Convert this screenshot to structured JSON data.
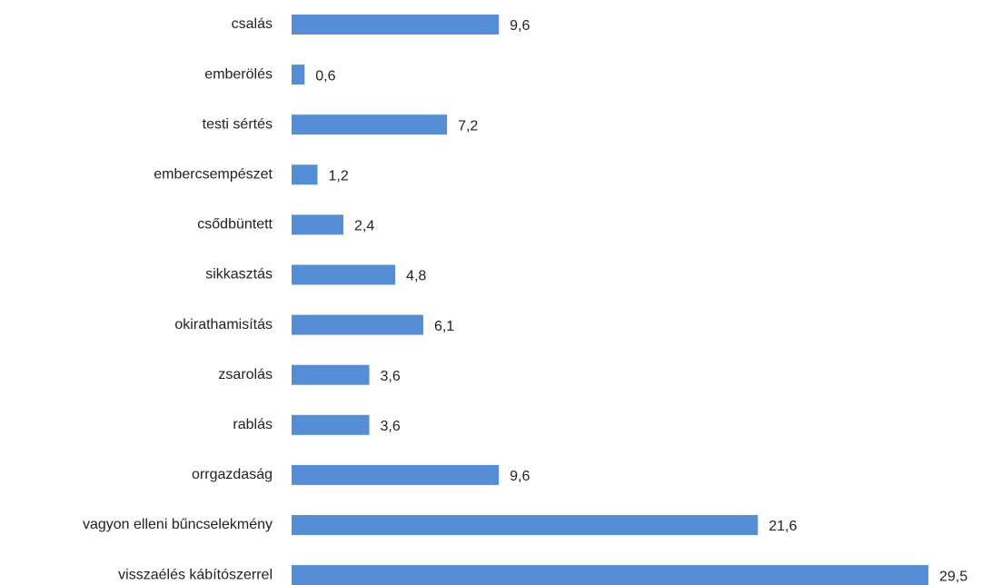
{
  "chart_data": {
    "type": "bar",
    "orientation": "horizontal",
    "categories": [
      "csalás",
      "emberölés",
      "testi sértés",
      "embercsempészet",
      "csődbüntett",
      "sikkasztás",
      "okirathamisítás",
      "zsarolás",
      "rablás",
      "orrgazdaság",
      "vagyon elleni bűncselekmény",
      "visszaélés kábítószerrel"
    ],
    "values": [
      9.6,
      0.6,
      7.2,
      1.2,
      2.4,
      4.8,
      6.1,
      3.6,
      3.6,
      9.6,
      21.6,
      29.5
    ],
    "value_labels": [
      "9,6",
      "0,6",
      "7,2",
      "1,2",
      "2,4",
      "4,8",
      "6,1",
      "3,6",
      "3,6",
      "9,6",
      "21,6",
      "29,5"
    ],
    "color": "#558ed5"
  }
}
